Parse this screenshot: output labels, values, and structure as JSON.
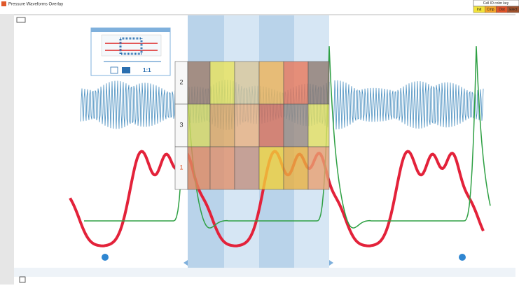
{
  "window": {
    "title": "Pressure Waveforms Overlay"
  },
  "color_key": {
    "title": "Cell ID color key",
    "items": [
      "Init",
      "Cmp",
      "Dist",
      "Elect"
    ]
  },
  "heatmap": {
    "row_labels": [
      "2",
      "3",
      "1"
    ]
  },
  "inset": {
    "zoom_label": "1:1"
  }
}
